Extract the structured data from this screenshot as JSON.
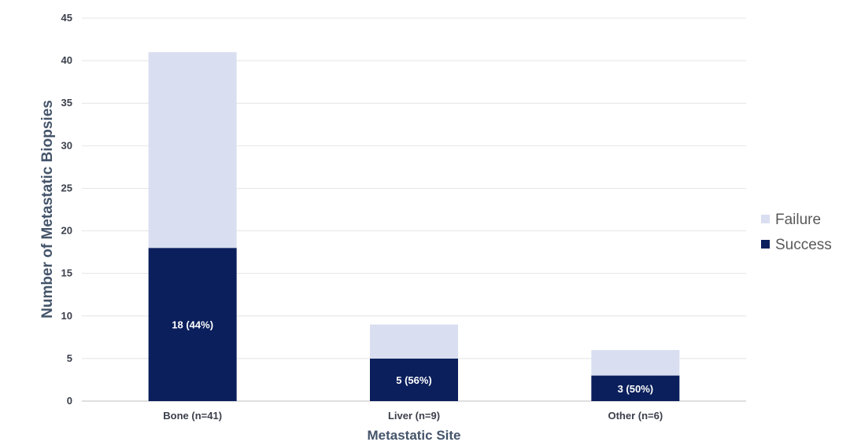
{
  "chart_data": {
    "type": "bar",
    "stacked": true,
    "categories": [
      "Bone (n=41)",
      "Liver (n=9)",
      "Other (n=6)"
    ],
    "series": [
      {
        "name": "Success",
        "values": [
          18,
          5,
          3
        ],
        "color": "#0b1f5c",
        "labels": [
          "18 (44%)",
          "5 (56%)",
          "3 (50%)"
        ]
      },
      {
        "name": "Failure",
        "values": [
          23,
          4,
          3
        ],
        "color": "#d9dff0"
      }
    ],
    "xlabel": "Metastatic Site",
    "ylabel": "Number of Metastatic Biopsies",
    "ylim": [
      0,
      45
    ],
    "yticks": [
      0,
      5,
      10,
      15,
      20,
      25,
      30,
      35,
      40,
      45
    ],
    "grid": true,
    "legend_position": "right",
    "legend": [
      {
        "name": "Failure",
        "color": "#d9dff0"
      },
      {
        "name": "Success",
        "color": "#0b1f5c"
      }
    ]
  }
}
